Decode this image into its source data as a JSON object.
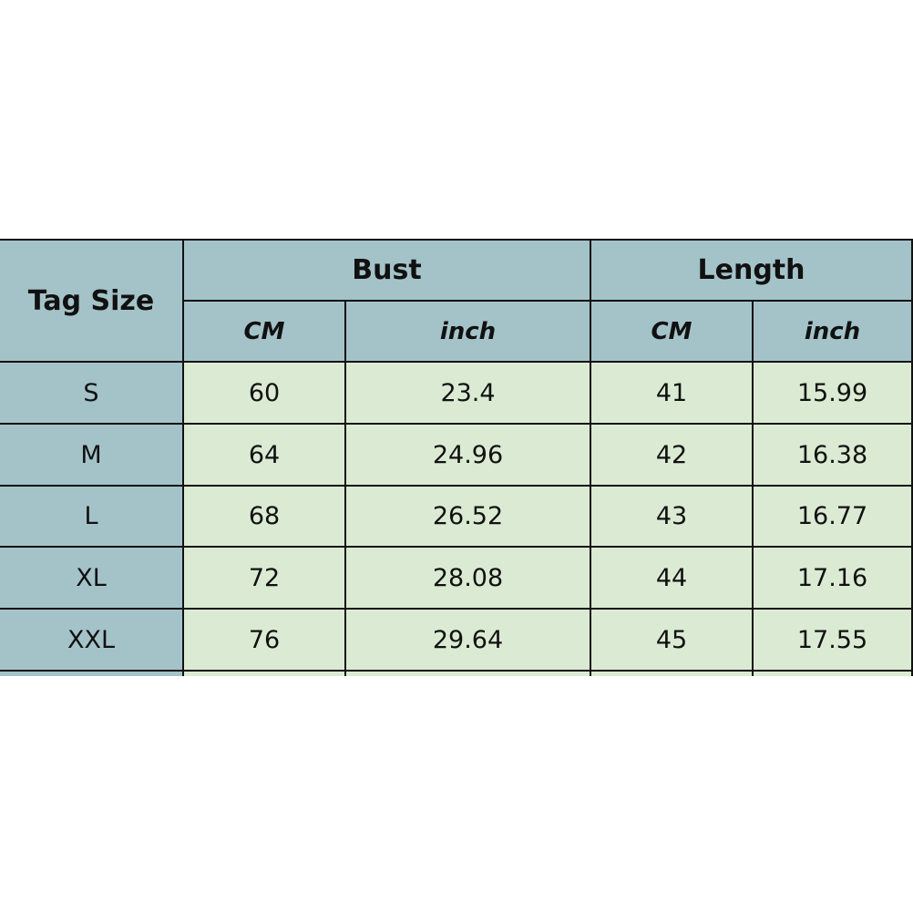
{
  "table": {
    "header": {
      "tag_size": "Tag Size",
      "bust": "Bust",
      "length": "Length"
    },
    "subheader": [
      "CM",
      "inch",
      "CM",
      "inch"
    ],
    "rows": [
      [
        "S",
        "60",
        "23.4",
        "41",
        "15.99"
      ],
      [
        "M",
        "64",
        "24.96",
        "42",
        "16.38"
      ],
      [
        "L",
        "68",
        "26.52",
        "43",
        "16.77"
      ],
      [
        "XL",
        "72",
        "28.08",
        "44",
        "17.16"
      ],
      [
        "XXL",
        "76",
        "29.64",
        "45",
        "17.55"
      ]
    ]
  },
  "colors": {
    "header_bg": "#a4c3c9",
    "data_bg": "#dbebd3",
    "border": "#111111"
  }
}
